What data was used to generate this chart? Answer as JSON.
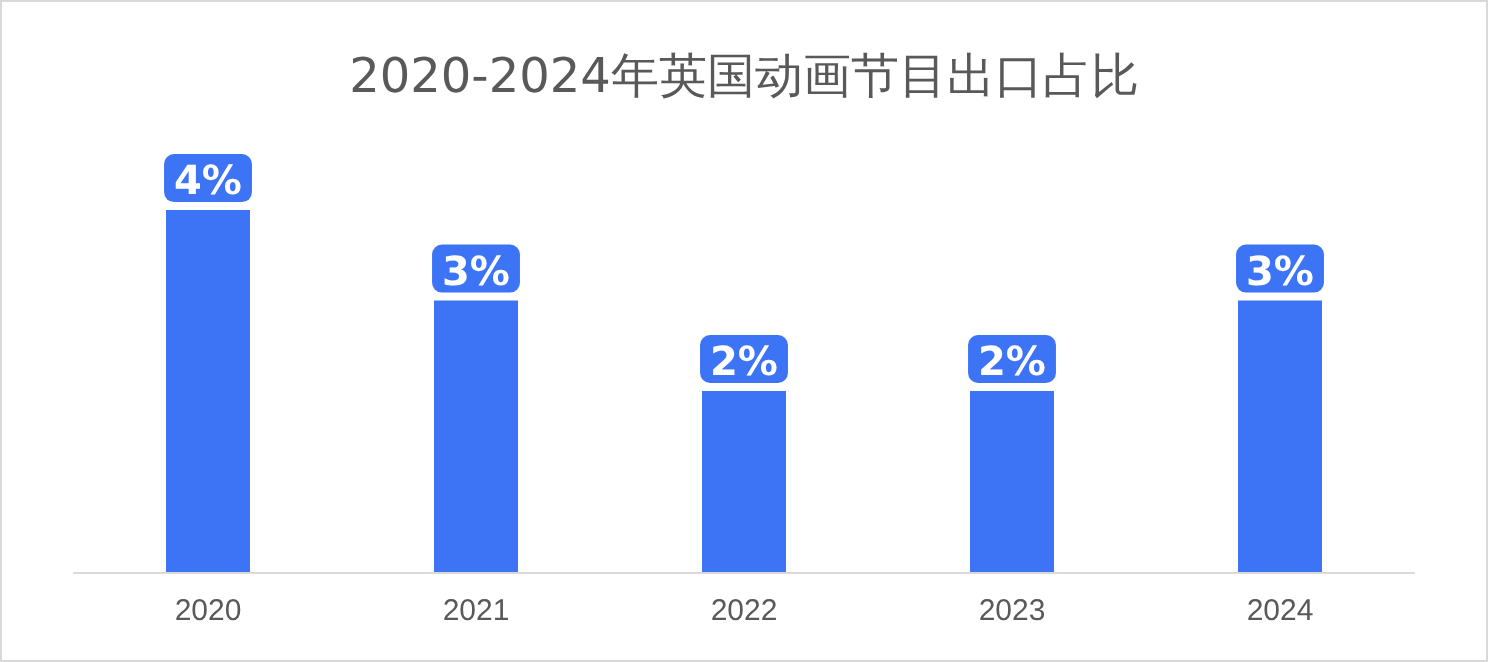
{
  "chart_data": {
    "type": "bar",
    "title": "2020-2024年英国动画节目出口占比",
    "categories": [
      "2020",
      "2021",
      "2022",
      "2023",
      "2024"
    ],
    "values": [
      4,
      3,
      2,
      2,
      3
    ],
    "value_labels": [
      "4%",
      "3%",
      "2%",
      "2%",
      "3%"
    ],
    "color": "#3d74f5"
  }
}
